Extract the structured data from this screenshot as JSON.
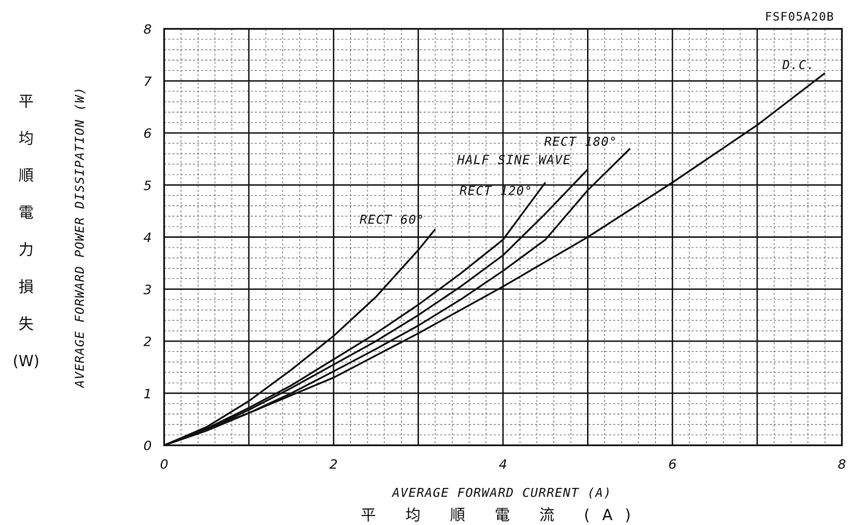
{
  "chart_data": {
    "type": "line",
    "title": "FSF05A20B",
    "xlabel": "AVERAGE FORWARD CURRENT (A)",
    "xlabel_jp": "平 均 順 電 流 (A)",
    "ylabel": "AVERAGE FORWARD POWER DISSIPATION (W)",
    "ylabel_jp": [
      "平",
      "均",
      "順",
      "電",
      "力",
      "損",
      "失",
      "(W)"
    ],
    "xlim": [
      0,
      8
    ],
    "ylim": [
      0,
      8
    ],
    "xticks": [
      "0",
      "2",
      "4",
      "6",
      "8"
    ],
    "yticks": [
      "0",
      "1",
      "2",
      "3",
      "4",
      "5",
      "6",
      "7",
      "8"
    ],
    "grid": true,
    "series": [
      {
        "name": "RECT 60°",
        "x": [
          0,
          0.5,
          1,
          1.5,
          2,
          2.5,
          3,
          3.2
        ],
        "y": [
          0,
          0.35,
          0.85,
          1.45,
          2.1,
          2.85,
          3.75,
          4.15
        ]
      },
      {
        "name": "RECT 120°",
        "x": [
          0,
          0.5,
          1,
          1.5,
          2,
          2.5,
          3,
          3.5,
          4,
          4.5
        ],
        "y": [
          0,
          0.32,
          0.72,
          1.15,
          1.65,
          2.15,
          2.7,
          3.3,
          3.95,
          5.05
        ]
      },
      {
        "name": "HALF SINE WAVE",
        "x": [
          0,
          0.5,
          1,
          1.5,
          2,
          2.5,
          3,
          3.5,
          4,
          4.5,
          5
        ],
        "y": [
          0,
          0.3,
          0.68,
          1.1,
          1.55,
          2.0,
          2.5,
          3.05,
          3.65,
          4.45,
          5.3
        ]
      },
      {
        "name": "RECT 180°",
        "x": [
          0,
          0.5,
          1,
          1.5,
          2,
          2.5,
          3,
          3.5,
          4,
          4.5,
          5,
          5.5
        ],
        "y": [
          0,
          0.28,
          0.62,
          1.0,
          1.42,
          1.85,
          2.3,
          2.8,
          3.35,
          3.95,
          4.9,
          5.7
        ]
      },
      {
        "name": "D.C.",
        "x": [
          0,
          1,
          2,
          3,
          4,
          5,
          6,
          7,
          7.8
        ],
        "y": [
          0,
          0.62,
          1.3,
          2.15,
          3.05,
          4.0,
          5.05,
          6.15,
          7.15
        ]
      }
    ]
  }
}
